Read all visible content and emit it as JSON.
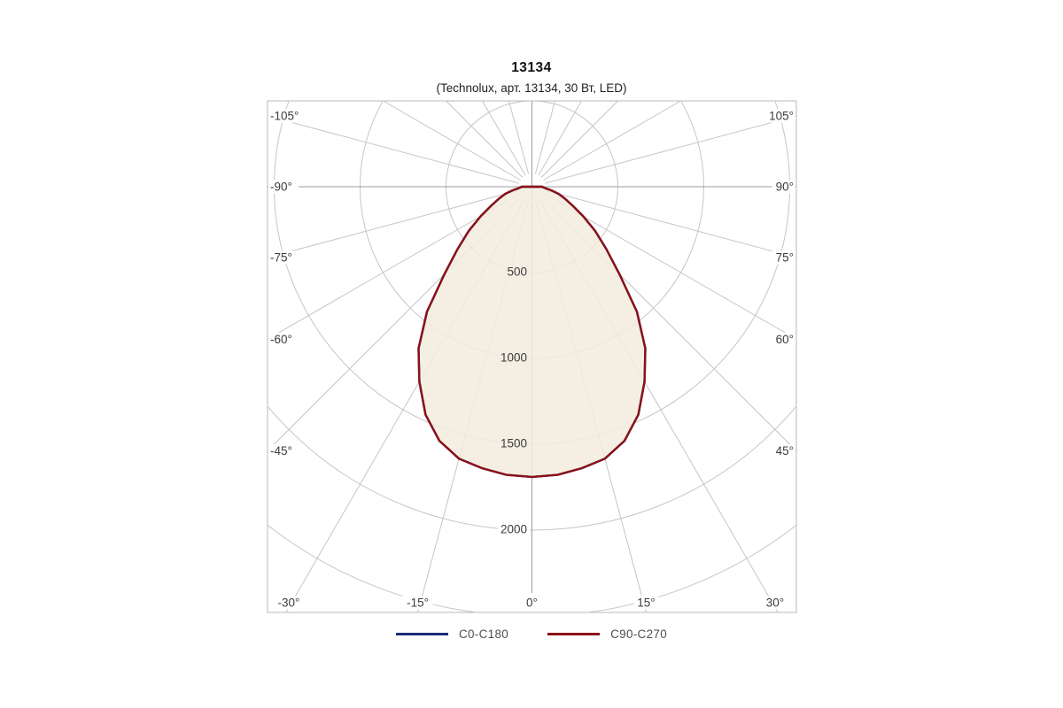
{
  "header": {
    "title": "13134",
    "subtitle": "(Technolux, арт. 13134, 30 Вт, LED)"
  },
  "legend": {
    "items": [
      {
        "label": "C0-C180",
        "color": "#1B2A7B"
      },
      {
        "label": "C90-C270",
        "color": "#8B1117"
      }
    ]
  },
  "chart_data": {
    "type": "area",
    "projection": "polar-photometric",
    "title": "13134",
    "subtitle": "(Technolux, арт. 13134, 30 Вт, LED)",
    "radial_unit": "cd",
    "angle_unit": "deg",
    "angle_labels": [
      "-105°",
      "-90°",
      "-75°",
      "-60°",
      "-45°",
      "-30°",
      "-15°",
      "0°",
      "15°",
      "30°",
      "45°",
      "60°",
      "75°",
      "90°",
      "105°"
    ],
    "angle_label_values": [
      -105,
      -90,
      -75,
      -60,
      -45,
      -30,
      -15,
      0,
      15,
      30,
      45,
      60,
      75,
      90,
      105
    ],
    "radial_ticks": [
      {
        "value": 500,
        "label": "500"
      },
      {
        "value": 1000,
        "label": "1000"
      },
      {
        "value": 1500,
        "label": "1500"
      },
      {
        "value": 2000,
        "label": "2000"
      }
    ],
    "rings": [
      500,
      1000,
      1500,
      2000,
      2500
    ],
    "ring_step": 500,
    "ray_step_deg": 15,
    "max_intensity_cd": 1690,
    "angles_deg": [
      -90,
      -85,
      -80,
      -75,
      -70,
      -65,
      -60,
      -55,
      -50,
      -45,
      -40,
      -35,
      -30,
      -25,
      -20,
      -15,
      -10,
      -5,
      0,
      5,
      10,
      15,
      20,
      25,
      30,
      35,
      40,
      45,
      50,
      55,
      60,
      65,
      70,
      75,
      80,
      85,
      90
    ],
    "series": [
      {
        "name": "C0-C180",
        "color": "#1B2A7B",
        "values": [
          60,
          72,
          110,
          160,
          205,
          262,
          345,
          450,
          565,
          720,
          950,
          1150,
          1310,
          1465,
          1575,
          1640,
          1665,
          1685,
          1690,
          1685,
          1665,
          1640,
          1575,
          1465,
          1310,
          1150,
          950,
          720,
          565,
          450,
          345,
          262,
          205,
          160,
          110,
          72,
          60
        ]
      },
      {
        "name": "C90-C270",
        "color": "#8B1117",
        "values": [
          60,
          72,
          110,
          160,
          205,
          262,
          345,
          450,
          565,
          720,
          950,
          1150,
          1310,
          1465,
          1575,
          1640,
          1665,
          1685,
          1690,
          1685,
          1665,
          1640,
          1575,
          1465,
          1310,
          1150,
          950,
          720,
          565,
          450,
          345,
          262,
          205,
          160,
          110,
          72,
          60
        ]
      }
    ],
    "fill_color": "#F2ECDD",
    "fill_opacity": 0.85,
    "grid_color": "#C6C6C6",
    "axis_color": "#9B9B9B",
    "border_color": "#B8B8B8",
    "label_color": "#3C3C3C",
    "tick_halo_inside": "#F3EEE2",
    "tick_halo_outside": "#FFFFFF"
  }
}
